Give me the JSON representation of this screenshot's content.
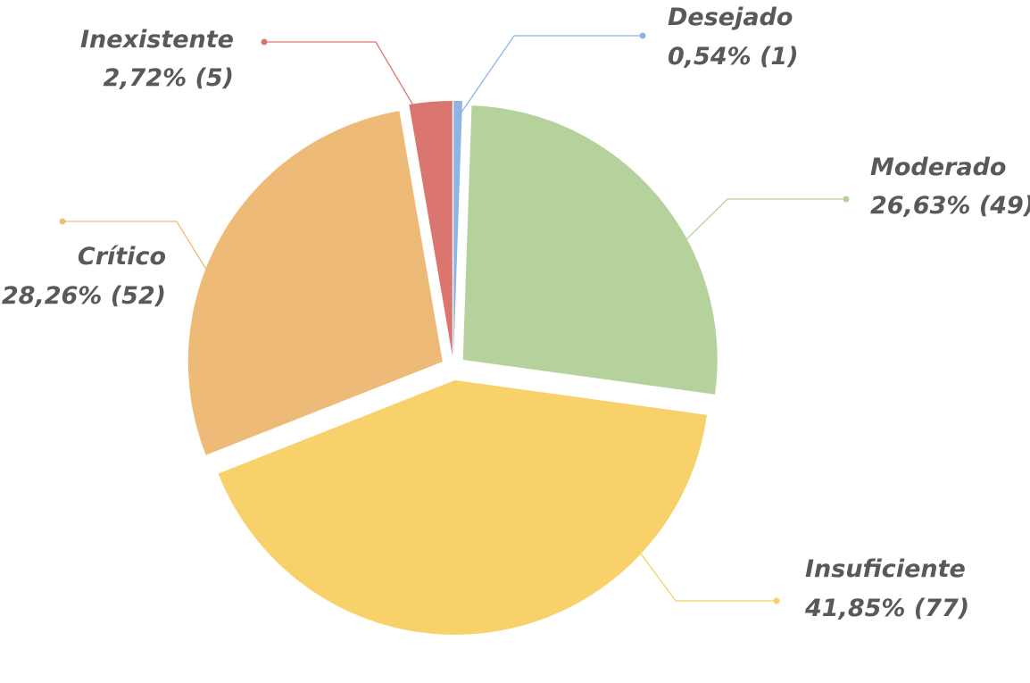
{
  "chart_data": {
    "type": "pie",
    "title": "",
    "legend": "none",
    "slices": [
      {
        "name": "Desejado",
        "value": 1,
        "percent_label": "0,54% (1)",
        "color": "#8EB4E3"
      },
      {
        "name": "Moderado",
        "value": 49,
        "percent_label": "26,63% (49)",
        "color": "#B5D19C"
      },
      {
        "name": "Insuficiente",
        "value": 77,
        "percent_label": "41,85% (77)",
        "color": "#F8D16B"
      },
      {
        "name": "Crítico",
        "value": 52,
        "percent_label": "28,26% (52)",
        "color": "#EEBA77"
      },
      {
        "name": "Inexistente",
        "value": 5,
        "percent_label": "2,72% (5)",
        "color": "#DA7570"
      }
    ]
  }
}
